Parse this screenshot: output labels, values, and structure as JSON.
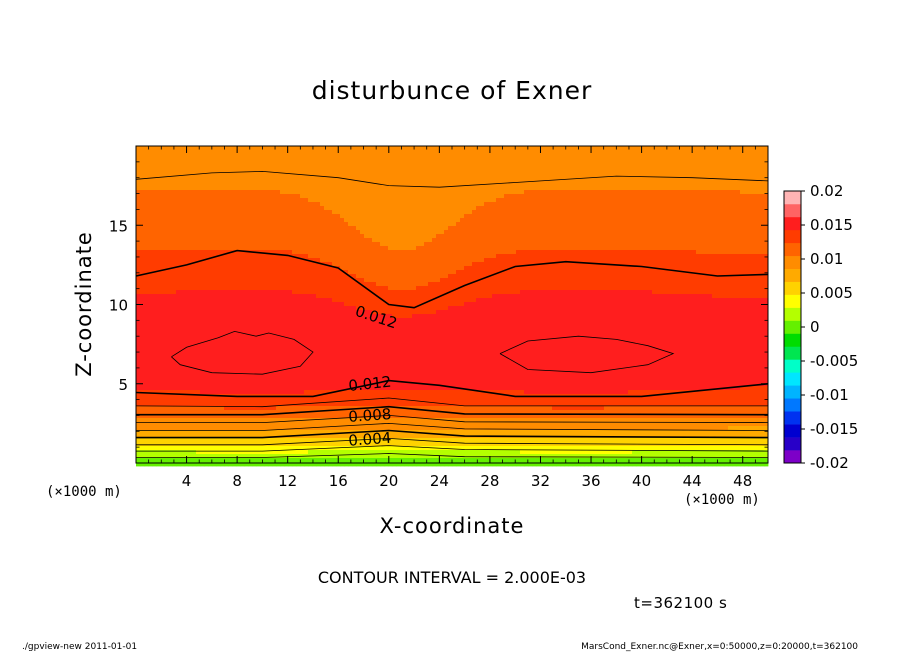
{
  "chart_data": {
    "type": "heatmap",
    "title": "disturbunce of Exner",
    "xlabel": "X-coordinate",
    "ylabel": "Z-coordinate",
    "x_unit_label": "(×1000 m)",
    "xlim": [
      0,
      50
    ],
    "ylim": [
      0,
      20
    ],
    "x_ticks": [
      4,
      8,
      12,
      16,
      20,
      24,
      28,
      32,
      36,
      40,
      44,
      48
    ],
    "y_ticks": [
      5,
      10,
      15
    ],
    "colorbar": {
      "range": [
        -0.02,
        0.02
      ],
      "tick_labels": [
        "0.02",
        "0.015",
        "0.01",
        "0.005",
        "0",
        "-0.005",
        "-0.01",
        "-0.015",
        "-0.02"
      ],
      "colors": [
        "#7d00c8",
        "#2800c8",
        "#0000d0",
        "#0032f0",
        "#0078ff",
        "#00b4ff",
        "#00e6ff",
        "#00ffc8",
        "#00e650",
        "#00dc00",
        "#64f000",
        "#b4ff00",
        "#ffff00",
        "#ffd200",
        "#ffaa00",
        "#ff8c00",
        "#ff6400",
        "#ff3c00",
        "#ff1e1e",
        "#ff6464",
        "#ffb4b4"
      ]
    },
    "contour_interval": "CONTOUR INTERVAL = 2.000E-03",
    "contour_labels": [
      {
        "text": "0.012",
        "x": 19,
        "z": 9.2,
        "angle": 18
      },
      {
        "text": "0.012",
        "x": 18.5,
        "z": 5.0,
        "angle": -6
      },
      {
        "text": "0.008",
        "x": 18.5,
        "z": 3.0,
        "angle": -4
      },
      {
        "text": "0.004",
        "x": 18.5,
        "z": 1.5,
        "angle": -4
      }
    ]
  },
  "time_label": "t=362100 s",
  "footer": {
    "left": "./gpview-new   2011-01-01",
    "right": "MarsCond_Exner.nc@Exner,x=0:50000,z=0:20000,t=362100"
  }
}
